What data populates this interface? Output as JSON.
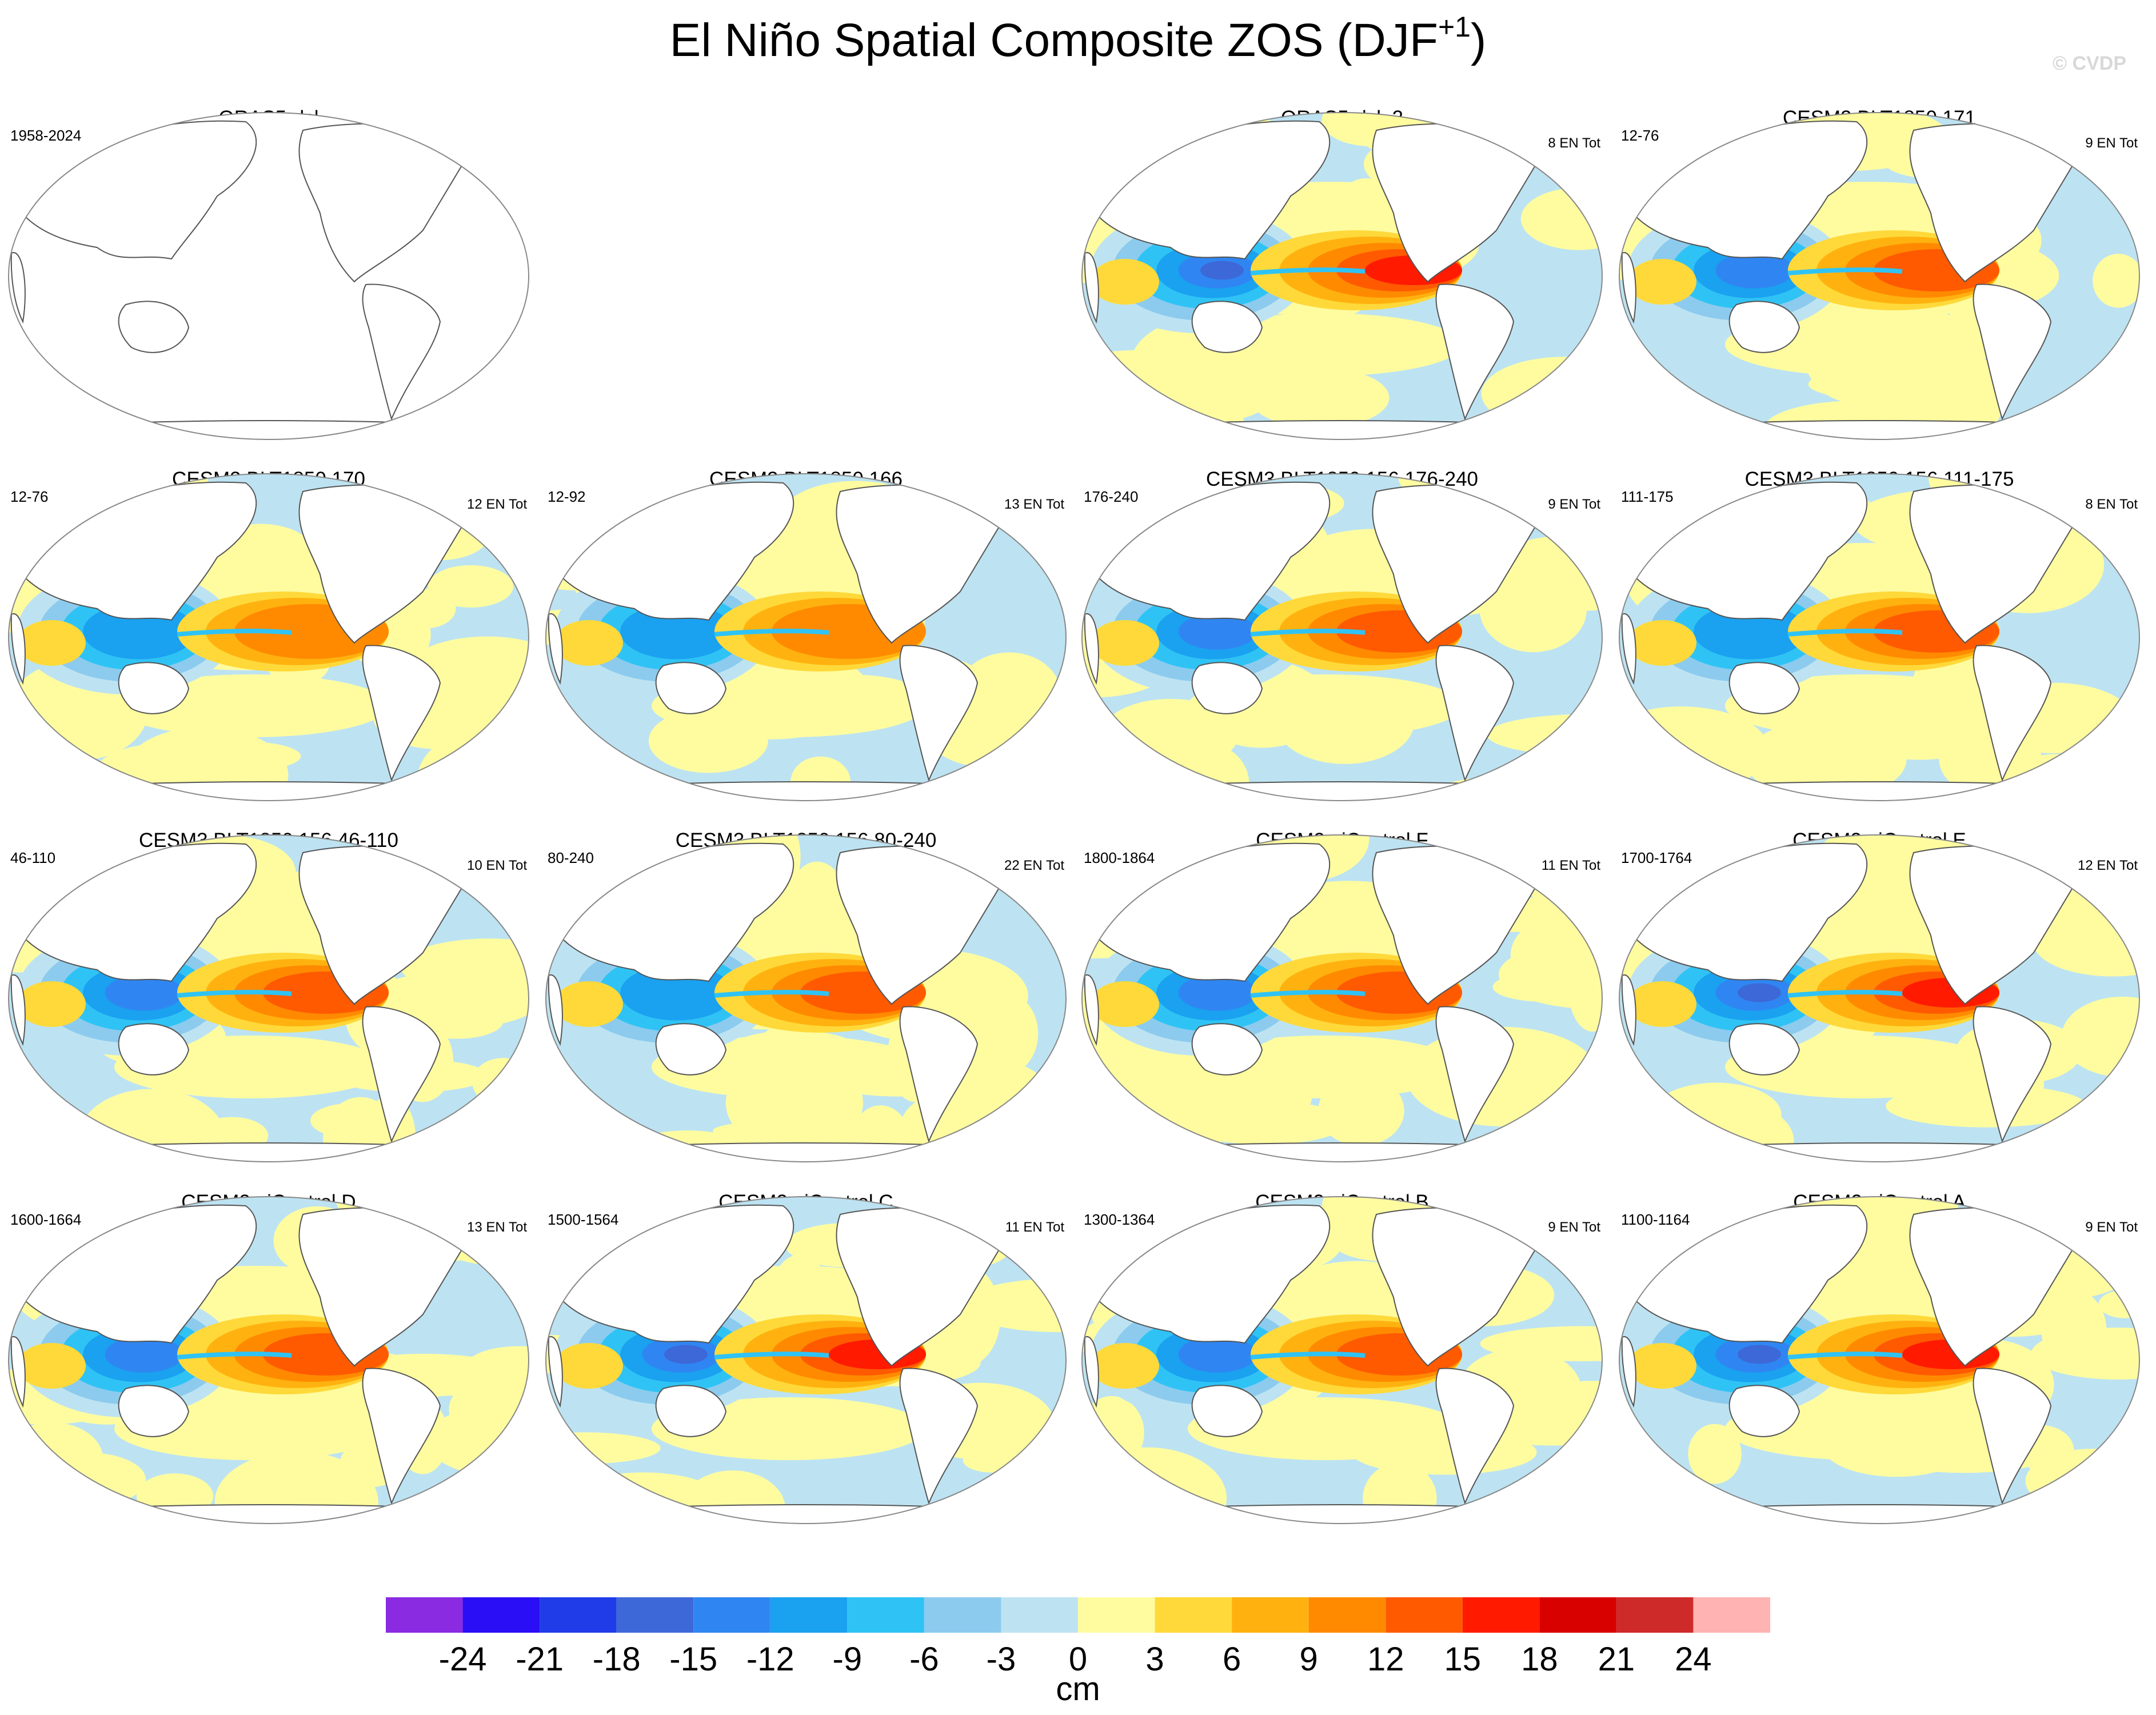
{
  "copyright": "© CVDP",
  "chart_data": {
    "type": "heatmap",
    "title": "El Niño Spatial Composite ZOS (DJF",
    "title_sup": "+1",
    "title_close": ")",
    "description_units": "cm",
    "colorbar": {
      "units": "cm",
      "ticks": [
        "-24",
        "-21",
        "-18",
        "-15",
        "-12",
        "-9",
        "-6",
        "-3",
        "0",
        "3",
        "6",
        "9",
        "12",
        "15",
        "18",
        "21",
        "24"
      ],
      "colors": [
        "#8a2be2",
        "#2a0ef5",
        "#1f3ce8",
        "#3d68d8",
        "#2f86f2",
        "#1aa1f0",
        "#2fc3f5",
        "#8ccbee",
        "#bde3f2",
        "#fffca0",
        "#ffd93a",
        "#ffb20f",
        "#ff8a00",
        "#ff5a00",
        "#ff1a00",
        "#d90000",
        "#cf2a2a",
        "#ffb3b3"
      ]
    },
    "panels": [
      {
        "title": "ORAS5-dsl",
        "left_label": "1958-2024",
        "right_label": "",
        "empty": true,
        "intensity": 0
      },
      {
        "title": "ORAS5-dsl_2",
        "left_label": "",
        "right_label": "8 EN Tot",
        "empty": false,
        "intensity": 1.0
      },
      {
        "title": "CESM3 BLT1850 171",
        "left_label": "12-76",
        "right_label": "9 EN Tot",
        "empty": false,
        "intensity": 0.75
      },
      {
        "title": "CESM3 BLT1850 170",
        "left_label": "12-76",
        "right_label": "12 EN Tot",
        "empty": false,
        "intensity": 0.55
      },
      {
        "title": "CESM3 BLT1850 166",
        "left_label": "12-92",
        "right_label": "13 EN Tot",
        "empty": false,
        "intensity": 0.55
      },
      {
        "title": "CESM3 BLT1850 156 176-240",
        "left_label": "176-240",
        "right_label": "9 EN Tot",
        "empty": false,
        "intensity": 0.85
      },
      {
        "title": "CESM3 BLT1850 156 111-175",
        "left_label": "111-175",
        "right_label": "8 EN Tot",
        "empty": false,
        "intensity": 0.7
      },
      {
        "title": "CESM3 BLT1850 156 46-110",
        "left_label": "46-110",
        "right_label": "10 EN Tot",
        "empty": false,
        "intensity": 0.85
      },
      {
        "title": "CESM3 BLT1850 156 80-240",
        "left_label": "80-240",
        "right_label": "22 EN Tot",
        "empty": false,
        "intensity": 0.7
      },
      {
        "title": "CESM2 piControl F",
        "left_label": "1800-1864",
        "right_label": "11 EN Tot",
        "empty": false,
        "intensity": 0.9
      },
      {
        "title": "CESM2 piControl E",
        "left_label": "1700-1764",
        "right_label": "12 EN Tot",
        "empty": false,
        "intensity": 1.0
      },
      {
        "title": "CESM2 piControl D",
        "left_label": "1600-1664",
        "right_label": "13 EN Tot",
        "empty": false,
        "intensity": 0.9
      },
      {
        "title": "CESM2 piControl C",
        "left_label": "1500-1564",
        "right_label": "11 EN Tot",
        "empty": false,
        "intensity": 1.1
      },
      {
        "title": "CESM2 piControl B",
        "left_label": "1300-1364",
        "right_label": "9 EN Tot",
        "empty": false,
        "intensity": 0.95
      },
      {
        "title": "CESM2 piControl A",
        "left_label": "1100-1164",
        "right_label": "9 EN Tot",
        "empty": false,
        "intensity": 1.0
      }
    ]
  }
}
